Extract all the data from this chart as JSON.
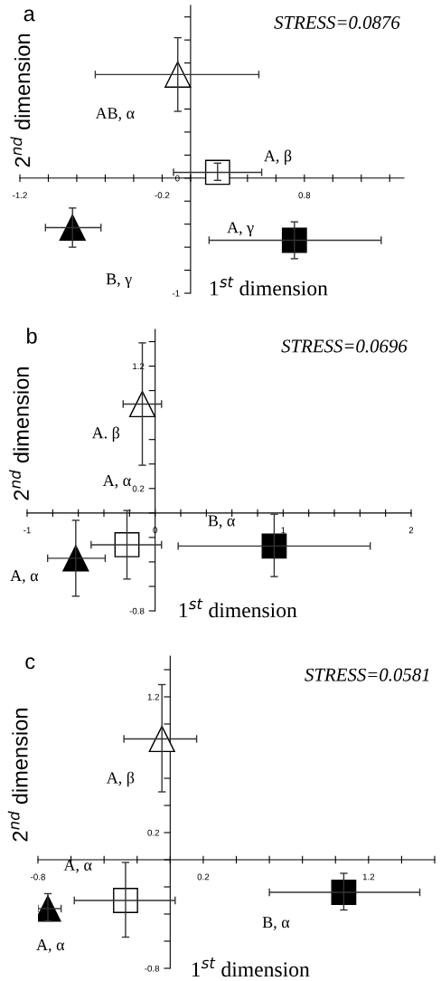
{
  "chart_data": [
    {
      "type": "scatter",
      "title": "a",
      "xlabel": "1$^{st}$ dimension",
      "ylabel": "2$^{nd}$ dimension",
      "xlim": [
        -1.2,
        1.5
      ],
      "ylim": [
        -1,
        1.5
      ],
      "xticks": [
        -1.2,
        {
          "value": -1.0,
          "label": null
        },
        {
          "value": -0.8,
          "label": null
        },
        {
          "value": -0.6,
          "label": null
        },
        {
          "value": -0.4,
          "label": null
        },
        -0.2,
        {
          "value": 0,
          "label": null
        },
        {
          "value": 0.2,
          "label": null
        },
        {
          "value": 0.4,
          "label": null
        },
        {
          "value": 0.6,
          "label": null
        },
        0.8,
        {
          "value": 1.0,
          "label": null
        },
        {
          "value": 1.2,
          "label": null
        },
        {
          "value": 1.4,
          "label": null
        }
      ],
      "yticks": [
        -1,
        {
          "value": -0.8,
          "label": null
        },
        {
          "value": -0.6,
          "label": null
        },
        {
          "value": -0.4,
          "label": null
        },
        {
          "value": -0.2,
          "label": null
        },
        0,
        {
          "value": 0.2,
          "label": null
        },
        {
          "value": 0.4,
          "label": null
        },
        {
          "value": 0.6,
          "label": null
        },
        {
          "value": 0.8,
          "label": null
        },
        {
          "value": 1.0,
          "label": null
        },
        {
          "value": 1.2,
          "label": null
        },
        {
          "value": 1.4,
          "label": null
        }
      ],
      "grid": false,
      "legend": false,
      "series": [
        {
          "name": "AB, α",
          "color": "#ffffff",
          "marker": "triangle",
          "x": [
            -0.09
          ],
          "values": [
            0.9
          ],
          "xerrors": [
            [
              -0.67,
              0.48
            ]
          ],
          "errors": [
            [
              0.58,
              1.22
            ]
          ]
        },
        {
          "name": "A, β",
          "color": "#ffffff",
          "marker": "square",
          "x": [
            0.19
          ],
          "values": [
            0.05
          ],
          "xerrors": [
            [
              -0.12,
              0.5
            ]
          ],
          "errors": [
            [
              -0.02,
              0.13
            ]
          ]
        },
        {
          "name": "B, γ",
          "color": "#000000",
          "marker": "triangle",
          "x": [
            -0.83
          ],
          "values": [
            -0.43
          ],
          "xerrors": [
            [
              -1.02,
              -0.63
            ]
          ],
          "errors": [
            [
              -0.6,
              -0.26
            ]
          ]
        },
        {
          "name": "A, γ",
          "color": "#000000",
          "marker": "square",
          "x": [
            0.73
          ],
          "values": [
            -0.54
          ],
          "xerrors": [
            [
              0.13,
              1.34
            ]
          ],
          "errors": [
            [
              -0.7,
              -0.38
            ]
          ]
        }
      ],
      "annotations": [
        "STRESS=0.0876"
      ]
    },
    {
      "type": "scatter",
      "title": "b",
      "xlabel": "1$^{st}$ dimension",
      "ylabel": "2$^{nd}$ dimension",
      "xlim": [
        -1,
        2
      ],
      "ylim": [
        -0.8,
        1.5
      ],
      "xticks": [
        -1,
        {
          "value": -0.8,
          "label": null
        },
        {
          "value": -0.6,
          "label": null
        },
        {
          "value": -0.4,
          "label": null
        },
        {
          "value": -0.2,
          "label": null
        },
        0,
        {
          "value": 0.2,
          "label": null
        },
        {
          "value": 0.4,
          "label": null
        },
        {
          "value": 0.6,
          "label": null
        },
        {
          "value": 0.8,
          "label": null
        },
        1,
        {
          "value": 1.2,
          "label": null
        },
        {
          "value": 1.4,
          "label": null
        },
        {
          "value": 1.6,
          "label": null
        },
        {
          "value": 1.8,
          "label": null
        },
        2
      ],
      "yticks": [
        -0.8,
        {
          "value": -0.6,
          "label": null
        },
        {
          "value": -0.4,
          "label": null
        },
        {
          "value": -0.2,
          "label": null
        },
        {
          "value": 0,
          "label": null
        },
        0.2,
        {
          "value": 0.4,
          "label": null
        },
        {
          "value": 0.6,
          "label": null
        },
        {
          "value": 0.8,
          "label": null
        },
        {
          "value": 1.0,
          "label": null
        },
        1.2,
        {
          "value": 1.4,
          "label": null
        }
      ],
      "grid": false,
      "legend": false,
      "series": [
        {
          "name": "A. β",
          "color": "#ffffff",
          "marker": "triangle",
          "x": [
            -0.1
          ],
          "values": [
            0.89
          ],
          "xerrors": [
            [
              -0.25,
              0.05
            ]
          ],
          "errors": [
            [
              0.39,
              1.39
            ]
          ]
        },
        {
          "name": "A, α",
          "color": "#ffffff",
          "marker": "square",
          "x": [
            -0.22
          ],
          "values": [
            -0.26
          ],
          "xerrors": [
            [
              -0.5,
              0.05
            ]
          ],
          "errors": [
            [
              -0.54,
              0.02
            ]
          ]
        },
        {
          "name": "A, α",
          "color": "#000000",
          "marker": "triangle",
          "x": [
            -0.62
          ],
          "values": [
            -0.37
          ],
          "xerrors": [
            [
              -0.84,
              -0.39
            ]
          ],
          "errors": [
            [
              -0.68,
              -0.06
            ]
          ]
        },
        {
          "name": "B, α",
          "color": "#000000",
          "marker": "square",
          "x": [
            0.93
          ],
          "values": [
            -0.27
          ],
          "xerrors": [
            [
              0.18,
              1.68
            ]
          ],
          "errors": [
            [
              -0.52,
              -0.01
            ]
          ]
        }
      ],
      "annotations": [
        "STRESS=0.0696"
      ]
    },
    {
      "type": "scatter",
      "title": "c",
      "xlabel": "1$^{st}$ dimension",
      "ylabel": "2$^{nd}$ dimension",
      "xlim": [
        -0.8,
        1.6
      ],
      "ylim": [
        -0.8,
        1.5
      ],
      "xticks": [
        -0.8,
        {
          "value": -0.6,
          "label": null
        },
        {
          "value": -0.4,
          "label": null
        },
        {
          "value": -0.2,
          "label": null
        },
        {
          "value": 0,
          "label": null
        },
        0.2,
        {
          "value": 0.4,
          "label": null
        },
        {
          "value": 0.6,
          "label": null
        },
        {
          "value": 0.8,
          "label": null
        },
        {
          "value": 1.0,
          "label": null
        },
        1.2,
        {
          "value": 1.4,
          "label": null
        },
        {
          "value": 1.6,
          "label": null
        }
      ],
      "yticks": [
        -0.8,
        {
          "value": -0.6,
          "label": null
        },
        {
          "value": -0.4,
          "label": null
        },
        {
          "value": -0.2,
          "label": null
        },
        {
          "value": 0,
          "label": null
        },
        0.2,
        {
          "value": 0.4,
          "label": null
        },
        {
          "value": 0.6,
          "label": null
        },
        {
          "value": 0.8,
          "label": null
        },
        {
          "value": 1.0,
          "label": null
        },
        1.2,
        {
          "value": 1.4,
          "label": null
        }
      ],
      "grid": false,
      "legend": false,
      "series": [
        {
          "name": "A, β",
          "color": "#ffffff",
          "marker": "triangle",
          "x": [
            -0.05
          ],
          "values": [
            0.89
          ],
          "xerrors": [
            [
              -0.28,
              0.16
            ]
          ],
          "errors": [
            [
              0.5,
              1.29
            ]
          ]
        },
        {
          "name": "A, α",
          "color": "#ffffff",
          "marker": "square",
          "x": [
            -0.27
          ],
          "values": [
            -0.3
          ],
          "xerrors": [
            [
              -0.58,
              0.03
            ]
          ],
          "errors": [
            [
              -0.57,
              -0.02
            ]
          ]
        },
        {
          "name": "A, α",
          "color": "#000000",
          "marker": "triangle",
          "x": [
            -0.74
          ],
          "values": [
            -0.36
          ],
          "xerrors": [
            [
              -0.8,
              -0.66
            ]
          ],
          "errors": [
            [
              -0.45,
              -0.25
            ]
          ]
        },
        {
          "name": "B, α",
          "color": "#000000",
          "marker": "square",
          "x": [
            1.05
          ],
          "values": [
            -0.24
          ],
          "xerrors": [
            [
              0.6,
              1.51
            ]
          ],
          "errors": [
            [
              -0.37,
              -0.1
            ]
          ]
        }
      ],
      "annotations": [
        "STRESS=0.0581"
      ]
    }
  ]
}
